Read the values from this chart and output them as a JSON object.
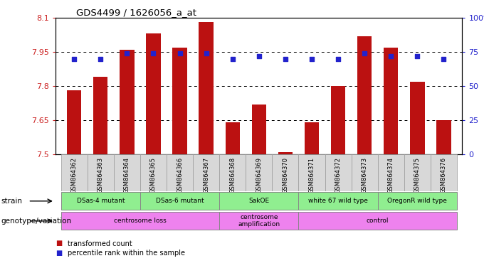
{
  "title": "GDS4499 / 1626056_a_at",
  "samples": [
    "GSM864362",
    "GSM864363",
    "GSM864364",
    "GSM864365",
    "GSM864366",
    "GSM864367",
    "GSM864368",
    "GSM864369",
    "GSM864370",
    "GSM864371",
    "GSM864372",
    "GSM864373",
    "GSM864374",
    "GSM864375",
    "GSM864376"
  ],
  "bar_values": [
    7.78,
    7.84,
    7.96,
    8.03,
    7.97,
    8.08,
    7.64,
    7.72,
    7.51,
    7.64,
    7.8,
    8.02,
    7.97,
    7.82,
    7.65
  ],
  "percentile_values": [
    70,
    70,
    74,
    74,
    74,
    74,
    70,
    72,
    70,
    70,
    70,
    74,
    72,
    72,
    70
  ],
  "bar_color": "#bb1111",
  "percentile_color": "#2222cc",
  "ylim_left": [
    7.5,
    8.1
  ],
  "ylim_right": [
    0,
    100
  ],
  "yticks_left": [
    7.5,
    7.65,
    7.8,
    7.95,
    8.1
  ],
  "yticks_right": [
    0,
    25,
    50,
    75,
    100
  ],
  "ytick_labels_left": [
    "7.5",
    "7.65",
    "7.8",
    "7.95",
    "8.1"
  ],
  "ytick_labels_right": [
    "0",
    "25",
    "50",
    "75",
    "100%"
  ],
  "hlines": [
    7.65,
    7.8,
    7.95
  ],
  "strain_groups": [
    {
      "label": "DSas-4 mutant",
      "start": 0,
      "end": 2,
      "color": "#90ee90"
    },
    {
      "label": "DSas-6 mutant",
      "start": 3,
      "end": 5,
      "color": "#90ee90"
    },
    {
      "label": "SakOE",
      "start": 6,
      "end": 8,
      "color": "#90ee90"
    },
    {
      "label": "white 67 wild type",
      "start": 9,
      "end": 11,
      "color": "#90ee90"
    },
    {
      "label": "OregonR wild type",
      "start": 12,
      "end": 14,
      "color": "#90ee90"
    }
  ],
  "genotype_groups": [
    {
      "label": "centrosome loss",
      "start": 0,
      "end": 5,
      "color": "#ee82ee"
    },
    {
      "label": "centrosome\namplification",
      "start": 6,
      "end": 8,
      "color": "#ee82ee"
    },
    {
      "label": "control",
      "start": 9,
      "end": 14,
      "color": "#ee82ee"
    }
  ],
  "bg_color": "#ffffff",
  "plot_bg": "#ffffff",
  "sample_row_bg": "#d8d8d8",
  "legend_items": [
    {
      "label": "transformed count",
      "color": "#bb1111"
    },
    {
      "label": "percentile rank within the sample",
      "color": "#2222cc"
    }
  ]
}
